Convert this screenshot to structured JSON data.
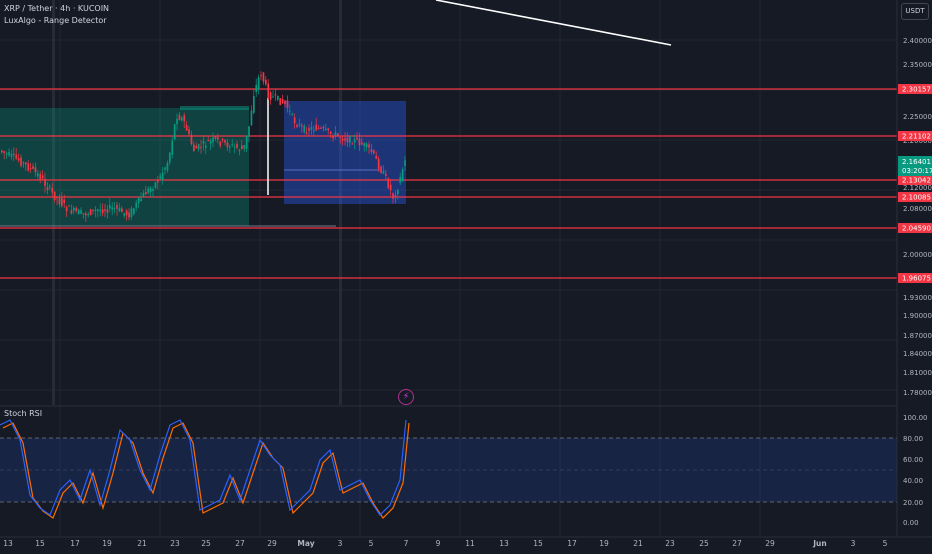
{
  "header": {
    "symbol": "XRP / Tether · 4h · KUCOIN",
    "indicator": "LuxAlgo - Range Detector"
  },
  "currency_button": "USDT",
  "price_axis": {
    "ticks": [
      "2.40000",
      "2.35000",
      "2.25000",
      "2.20000",
      "2.15000",
      "2.12000",
      "2.08000",
      "2.00000",
      "1.93000",
      "1.90000",
      "1.87000",
      "1.84000",
      "1.81000",
      "1.78000"
    ]
  },
  "level_labels": [
    {
      "text": "2.30157",
      "color": "#f23645"
    },
    {
      "text": "2.21102",
      "color": "#f23645"
    },
    {
      "text": "2.13042",
      "color": "#f23645"
    },
    {
      "text": "2.10085",
      "color": "#f23645"
    },
    {
      "text": "2.04590",
      "color": "#f23645"
    },
    {
      "text": "1.96075",
      "color": "#f23645"
    }
  ],
  "current_price": {
    "value": "2.16401",
    "countdown": "03:20:17",
    "color": "#089981"
  },
  "time_axis": {
    "labels": [
      "13",
      "15",
      "17",
      "19",
      "21",
      "23",
      "25",
      "27",
      "29",
      "May",
      "3",
      "5",
      "7",
      "9",
      "11",
      "13",
      "15",
      "17",
      "19",
      "21",
      "23",
      "25",
      "27",
      "29",
      "Jun",
      "3",
      "5"
    ]
  },
  "oscillator": {
    "name": "Stoch RSI",
    "ticks": [
      "100.00",
      "80.00",
      "60.00",
      "40.00",
      "20.00",
      "0.00"
    ],
    "colors": {
      "k": "#2962ff",
      "d": "#ff6d00",
      "band": "#2962ff"
    }
  },
  "icons": {
    "event_marker": "lightning-icon"
  }
}
